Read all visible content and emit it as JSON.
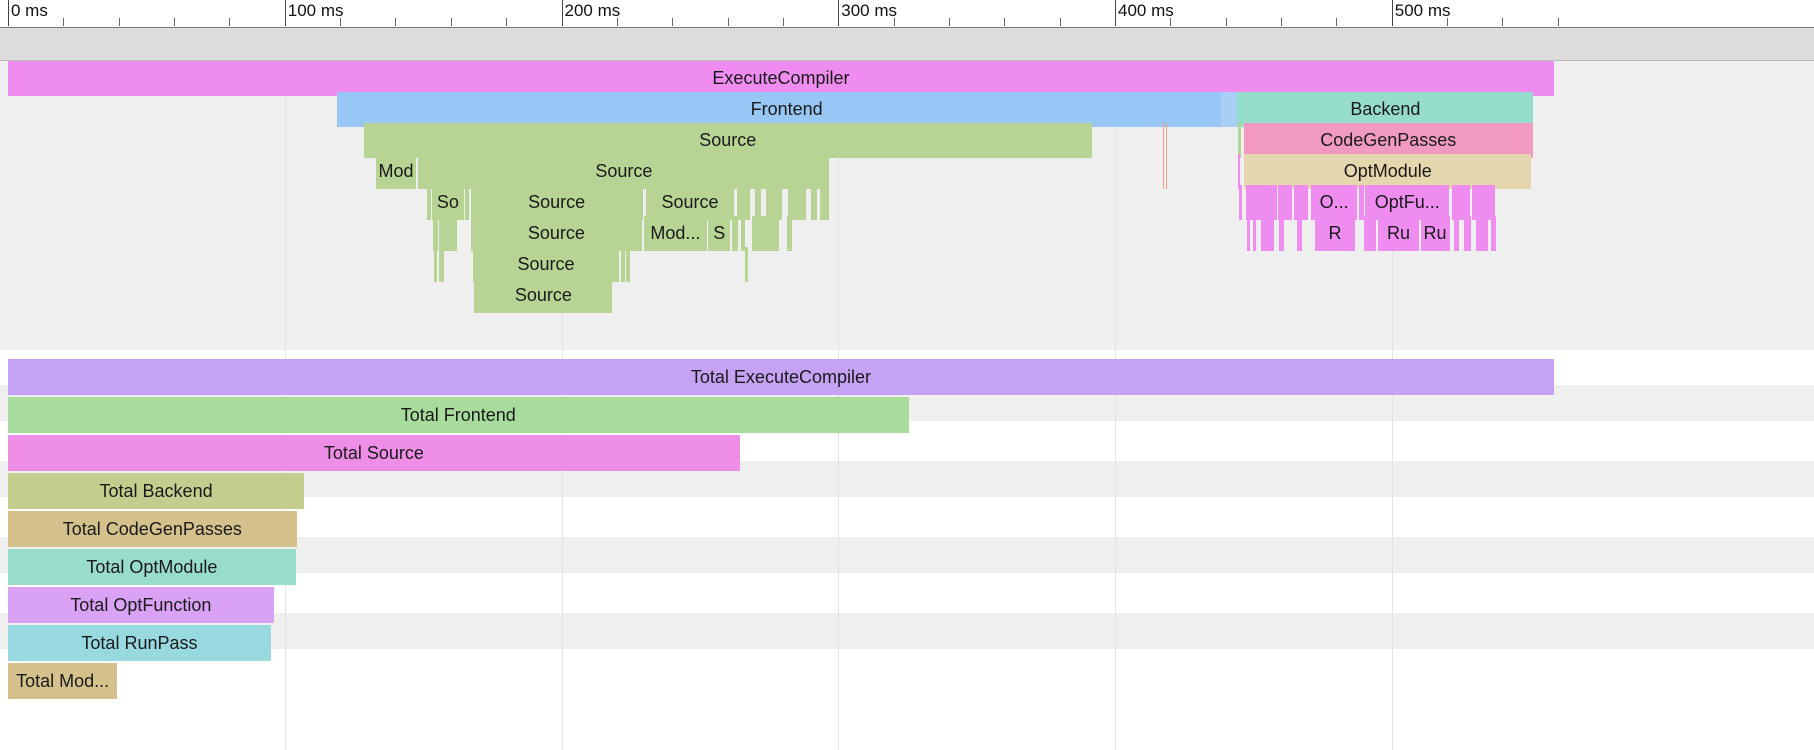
{
  "ruler": {
    "ticks": [
      "0 ms",
      "100 ms",
      "200 ms",
      "300 ms",
      "400 ms",
      "500 ms"
    ]
  },
  "flame": {
    "bars": [
      {
        "name": "ExecuteCompiler",
        "start": 0,
        "end": 558.6,
        "depth": 0,
        "color": "#ee8cf0"
      },
      {
        "name": "Frontend",
        "start": 118.7,
        "end": 444,
        "depth": 1,
        "color": "#98c6f5"
      },
      {
        "name": "Backend",
        "start": 444.2,
        "end": 551.2,
        "depth": 1,
        "color": "#95dccb"
      },
      {
        "name": "Source",
        "start": 128.6,
        "end": 391.6,
        "depth": 2,
        "color": "#b8d494"
      },
      {
        "name": "CodeGenPasses",
        "start": 446.6,
        "end": 550.9,
        "depth": 2,
        "color": "#f09ac2"
      },
      {
        "name": "Mod",
        "start": 132.8,
        "end": 147.6,
        "depth": 3,
        "color": "#b8d494"
      },
      {
        "name": "Source",
        "start": 148.3,
        "end": 296.8,
        "depth": 3,
        "color": "#b8d494"
      },
      {
        "name": "OptModule",
        "start": 446.7,
        "end": 550.4,
        "depth": 3,
        "color": "#e4d6ad"
      },
      {
        "name": "So",
        "start": 153.1,
        "end": 164.8,
        "depth": 4,
        "color": "#b8d494"
      },
      {
        "name": "Source",
        "start": 167.2,
        "end": 229.3,
        "depth": 4,
        "color": "#b8d494"
      },
      {
        "name": "Source",
        "start": 230.6,
        "end": 262.3,
        "depth": 4,
        "color": "#b8d494"
      },
      {
        "name": "O...",
        "start": 470.8,
        "end": 487.6,
        "depth": 4,
        "color": "#ee8cf0"
      },
      {
        "name": "OptFu...",
        "start": 490.4,
        "end": 520.8,
        "depth": 4,
        "color": "#ee8cf0"
      },
      {
        "name": "Source",
        "start": 167.3,
        "end": 229.0,
        "depth": 5,
        "color": "#b8d494"
      },
      {
        "name": "Mod...",
        "start": 229.7,
        "end": 252.6,
        "depth": 5,
        "color": "#b8d494"
      },
      {
        "name": "S",
        "start": 253.1,
        "end": 260.9,
        "depth": 5,
        "color": "#b8d494"
      },
      {
        "name": "R",
        "start": 472.2,
        "end": 486.8,
        "depth": 5,
        "color": "#ee8cf0"
      },
      {
        "name": "Ru",
        "start": 495.2,
        "end": 509.7,
        "depth": 5,
        "color": "#ee8cf0"
      },
      {
        "name": "Ru",
        "start": 510.4,
        "end": 520.9,
        "depth": 5,
        "color": "#ee8cf0"
      },
      {
        "name": "Source",
        "start": 167.9,
        "end": 220.9,
        "depth": 6,
        "color": "#b8d494"
      },
      {
        "name": "Source",
        "start": 168.5,
        "end": 218.4,
        "depth": 7,
        "color": "#b8d494"
      }
    ]
  },
  "totals": {
    "bars": [
      {
        "name": "Total ExecuteCompiler",
        "duration": 558.6,
        "color": "#c6a2f5"
      },
      {
        "name": "Total Frontend",
        "duration": 325.4,
        "color": "#a8dc9c"
      },
      {
        "name": "Total Source",
        "duration": 264.4,
        "color": "#ee8ee6"
      },
      {
        "name": "Total Backend",
        "duration": 107.0,
        "color": "#c4cc8e"
      },
      {
        "name": "Total CodeGenPasses",
        "duration": 104.3,
        "color": "#d4c18c"
      },
      {
        "name": "Total OptModule",
        "duration": 104.0,
        "color": "#98dccb"
      },
      {
        "name": "Total OptFunction",
        "duration": 96.0,
        "color": "#daa2f5"
      },
      {
        "name": "Total RunPass",
        "duration": 95.0,
        "color": "#98d9df"
      },
      {
        "name": "Total Mod...",
        "duration": 39.5,
        "color": "#d4c18c"
      }
    ]
  }
}
